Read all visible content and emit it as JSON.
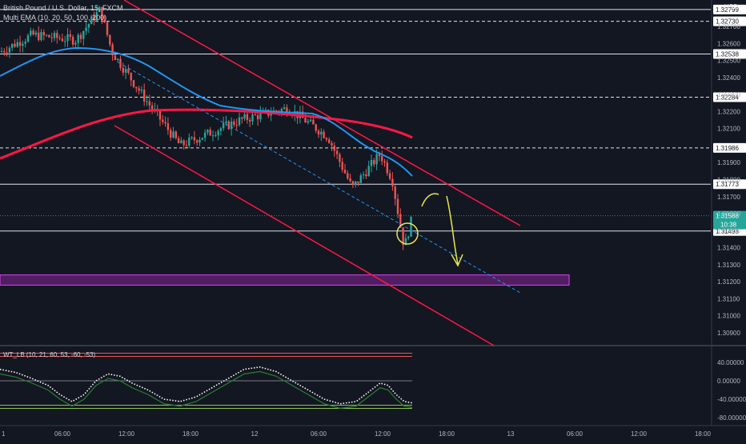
{
  "header": {
    "symbol_title": "British Pound / U.S. Dollar, 15, FXCM",
    "indicator_title": "Multi EMA (10, 20, 50, 100, 200)",
    "currency": "USD"
  },
  "oscillator": {
    "title": "WT_LB (10, 21, 60, 53, -60, -53)",
    "ticks": [
      {
        "value": 40,
        "label": "40.00000"
      },
      {
        "value": 0,
        "label": "0.00000"
      },
      {
        "value": -40,
        "label": "-40.00000"
      },
      {
        "value": -80,
        "label": "-80.00000"
      }
    ],
    "overbought_levels": [
      60,
      53
    ],
    "oversold_levels": [
      -60,
      -53
    ]
  },
  "chart_data": {
    "type": "line",
    "y_axis_ticks": [
      "1.32700",
      "1.32600",
      "1.32500",
      "1.32400",
      "1.32300",
      "1.32200",
      "1.32100",
      "1.31900",
      "1.31800",
      "1.31700",
      "1.31600",
      "1.31500",
      "1.31400",
      "1.31300",
      "1.31200",
      "1.31100",
      "1.31000",
      "1.30900"
    ],
    "ylim": [
      1.3085,
      1.3285
    ],
    "price_labels": [
      {
        "value": "1.32799",
        "style": "solid"
      },
      {
        "value": "1.32730",
        "style": "dashed"
      },
      {
        "value": "1.32538",
        "style": "solid"
      },
      {
        "value": "1.32284",
        "style": "dashed"
      },
      {
        "value": "1.31986",
        "style": "dashed"
      },
      {
        "value": "1.31773",
        "style": "solid"
      },
      {
        "value": "1.31498",
        "style": "solid"
      }
    ],
    "current_price": {
      "value": "1.31588",
      "countdown": "10:38",
      "color": "#26a69a"
    },
    "x_axis_ticks": [
      "1",
      "06:00",
      "12:00",
      "18:00",
      "12",
      "06:00",
      "12:00",
      "18:00",
      "13",
      "06:00",
      "12:00",
      "18:00"
    ],
    "series": [
      {
        "type": "candlestick",
        "up_color": "#26a69a",
        "down_color": "#ef5350"
      },
      {
        "type": "line",
        "color": "#ff1744"
      },
      {
        "type": "line",
        "color": "#2196f3"
      }
    ],
    "zone": {
      "from": 1.3118,
      "to": 1.3124,
      "color": "#9c27b0"
    },
    "channel_color": "#ff1744"
  }
}
